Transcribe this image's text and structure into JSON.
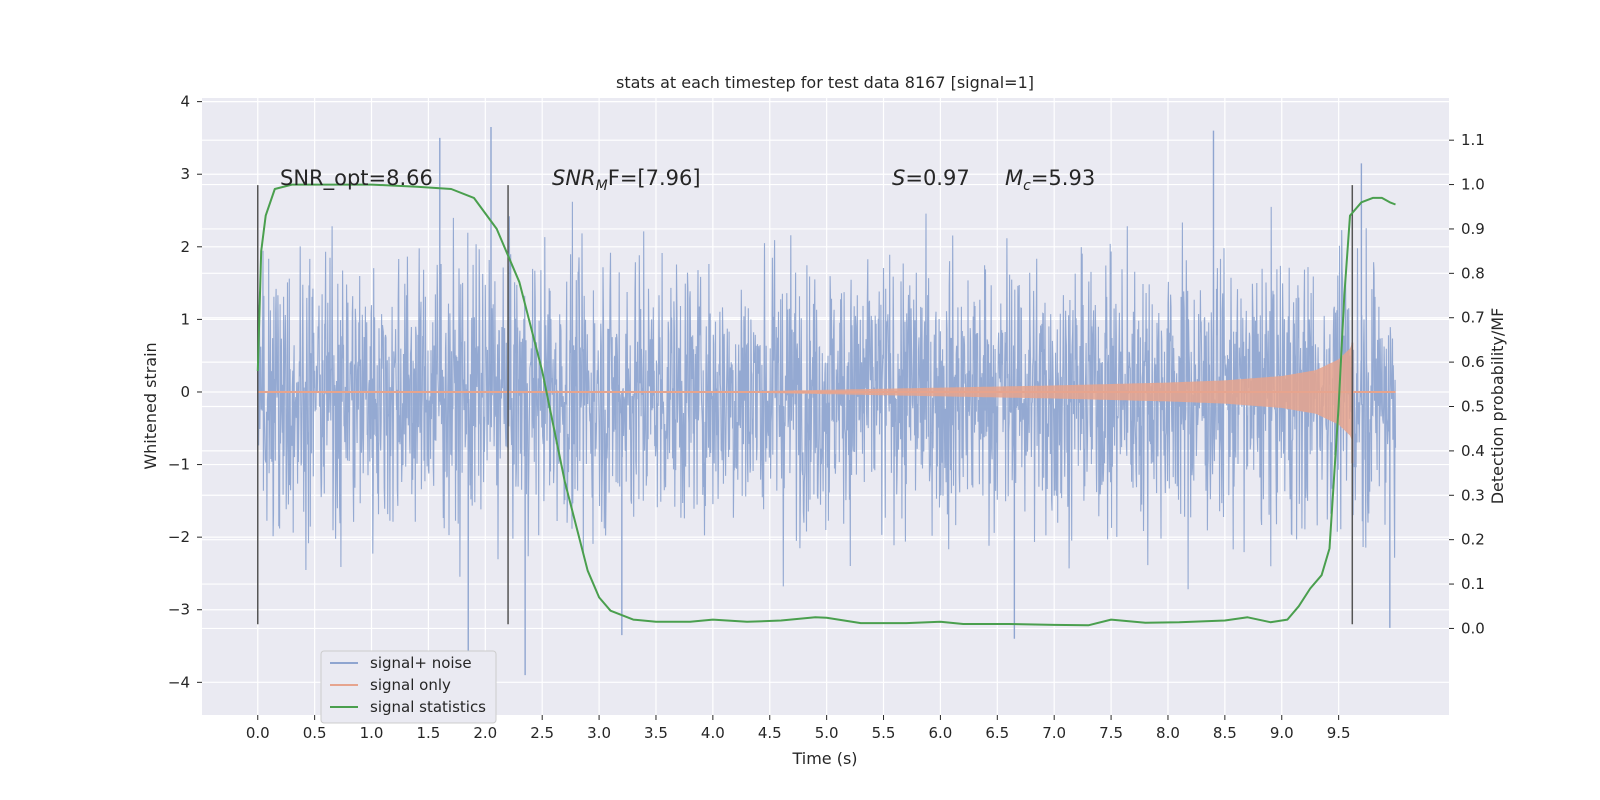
{
  "chart_data": {
    "type": "line",
    "title": "stats at each timestep for test data 8167 [signal=1]",
    "xlabel": "Time (s)",
    "ylabel": "Whitened strain",
    "y2label": "Detection probability/MF",
    "xlim": [
      -0.49,
      10.47
    ],
    "ylim": [
      -4.45,
      4.05
    ],
    "y2lim": [
      -0.195,
      1.195
    ],
    "xticks": [
      "0.0",
      "0.5",
      "1.0",
      "1.5",
      "2.0",
      "2.5",
      "3.0",
      "3.5",
      "4.0",
      "4.5",
      "5.0",
      "5.5",
      "6.0",
      "6.5",
      "7.0",
      "7.5",
      "8.0",
      "8.5",
      "9.0",
      "9.5"
    ],
    "yticks": [
      "4",
      "3",
      "2",
      "1",
      "0",
      "−1",
      "−2",
      "−3",
      "−4"
    ],
    "y2ticks": [
      "1.1",
      "1.0",
      "0.9",
      "0.8",
      "0.7",
      "0.6",
      "0.5",
      "0.4",
      "0.3",
      "0.2",
      "0.1",
      "0.0"
    ],
    "grid": true,
    "legend_position": "lower-left",
    "legend": [
      "signal+ noise",
      "signal only",
      "signal statistics"
    ],
    "annotations": {
      "snr_opt": "SNR_opt=8.66",
      "snr_mf_italic": "SNR",
      "snr_mf_sub": "M",
      "snr_mf_rest": "F=[7.96]",
      "s_italic": "S",
      "s_rest": "=0.97",
      "mc_italic": "M",
      "mc_sub": "c",
      "mc_rest": "=5.93"
    },
    "vertical_markers_x": [
      0.0,
      2.2,
      9.62
    ],
    "series": [
      {
        "name": "signal+ noise",
        "color": "#8fa5d0",
        "note_envelope": "dense noise trace, roughly within ±2.5 with spikes reaching about ±3.6",
        "x_range": [
          0.0,
          10.0
        ],
        "peak_spikes": [
          {
            "x": 1.6,
            "y": 3.5
          },
          {
            "x": 2.05,
            "y": 3.65
          },
          {
            "x": 2.35,
            "y": -3.9
          },
          {
            "x": 1.85,
            "y": -3.6
          },
          {
            "x": 3.2,
            "y": -3.35
          },
          {
            "x": 6.65,
            "y": -3.4
          },
          {
            "x": 8.4,
            "y": 3.6
          },
          {
            "x": 9.7,
            "y": 3.15
          },
          {
            "x": 9.95,
            "y": -3.25
          }
        ]
      },
      {
        "name": "signal only",
        "color": "#e6a48e",
        "x": [
          0.0,
          4.0,
          5.0,
          6.0,
          7.0,
          8.0,
          8.5,
          9.0,
          9.3,
          9.5,
          9.6,
          9.62,
          9.63,
          10.0
        ],
        "amplitude": [
          0.0,
          0.0,
          0.03,
          0.06,
          0.09,
          0.13,
          0.16,
          0.22,
          0.3,
          0.45,
          0.6,
          0.68,
          0.0,
          0.0
        ]
      },
      {
        "name": "signal statistics",
        "color": "#4a9f4e",
        "x": [
          0.0,
          0.03,
          0.07,
          0.15,
          0.3,
          0.6,
          1.0,
          1.4,
          1.7,
          1.9,
          2.1,
          2.3,
          2.5,
          2.7,
          2.9,
          3.0,
          3.1,
          3.3,
          3.5,
          3.8,
          4.0,
          4.3,
          4.6,
          4.9,
          5.0,
          5.3,
          5.7,
          6.0,
          6.2,
          6.6,
          7.0,
          7.3,
          7.5,
          7.8,
          8.1,
          8.5,
          8.7,
          8.9,
          9.05,
          9.15,
          9.25,
          9.35,
          9.42,
          9.5,
          9.55,
          9.6,
          9.7,
          9.8,
          9.88,
          9.95,
          10.0
        ],
        "y": [
          0.58,
          0.85,
          0.93,
          0.99,
          1.0,
          1.0,
          1.0,
          0.995,
          0.99,
          0.97,
          0.9,
          0.78,
          0.58,
          0.33,
          0.13,
          0.07,
          0.04,
          0.02,
          0.015,
          0.015,
          0.02,
          0.015,
          0.018,
          0.025,
          0.024,
          0.012,
          0.012,
          0.015,
          0.01,
          0.01,
          0.008,
          0.007,
          0.02,
          0.013,
          0.014,
          0.018,
          0.025,
          0.014,
          0.02,
          0.05,
          0.09,
          0.12,
          0.18,
          0.5,
          0.75,
          0.93,
          0.96,
          0.97,
          0.97,
          0.96,
          0.955
        ]
      }
    ]
  }
}
